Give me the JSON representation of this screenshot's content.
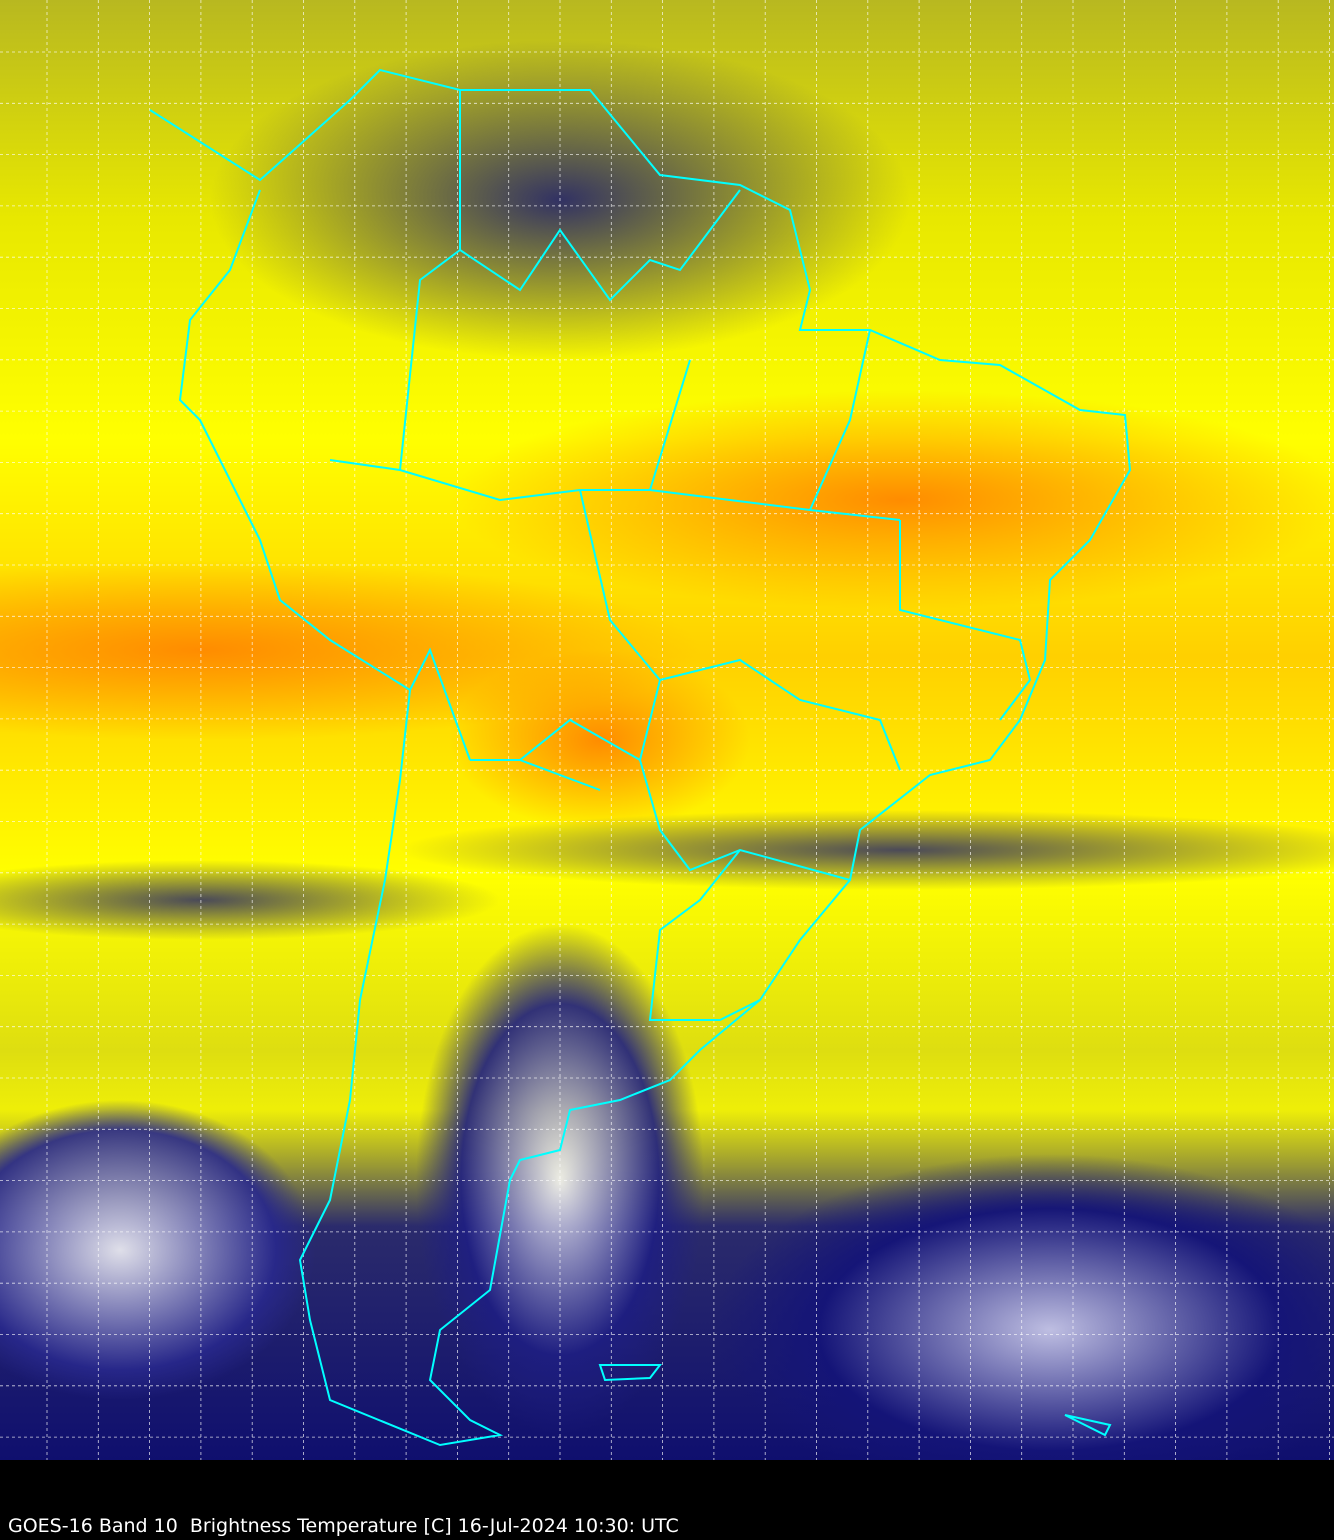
{
  "caption": "GOES-16 Band 10  Brightness Temperature [C] 16-Jul-2024 10:30: UTC",
  "map": {
    "border_color": "#00ffff",
    "grid_color": "#ffffff",
    "grid": true,
    "palette": [
      "#ffffff",
      "#2e8b2e",
      "#1a1a80",
      "#a0a020",
      "#ffff00",
      "#ff8c00"
    ]
  }
}
